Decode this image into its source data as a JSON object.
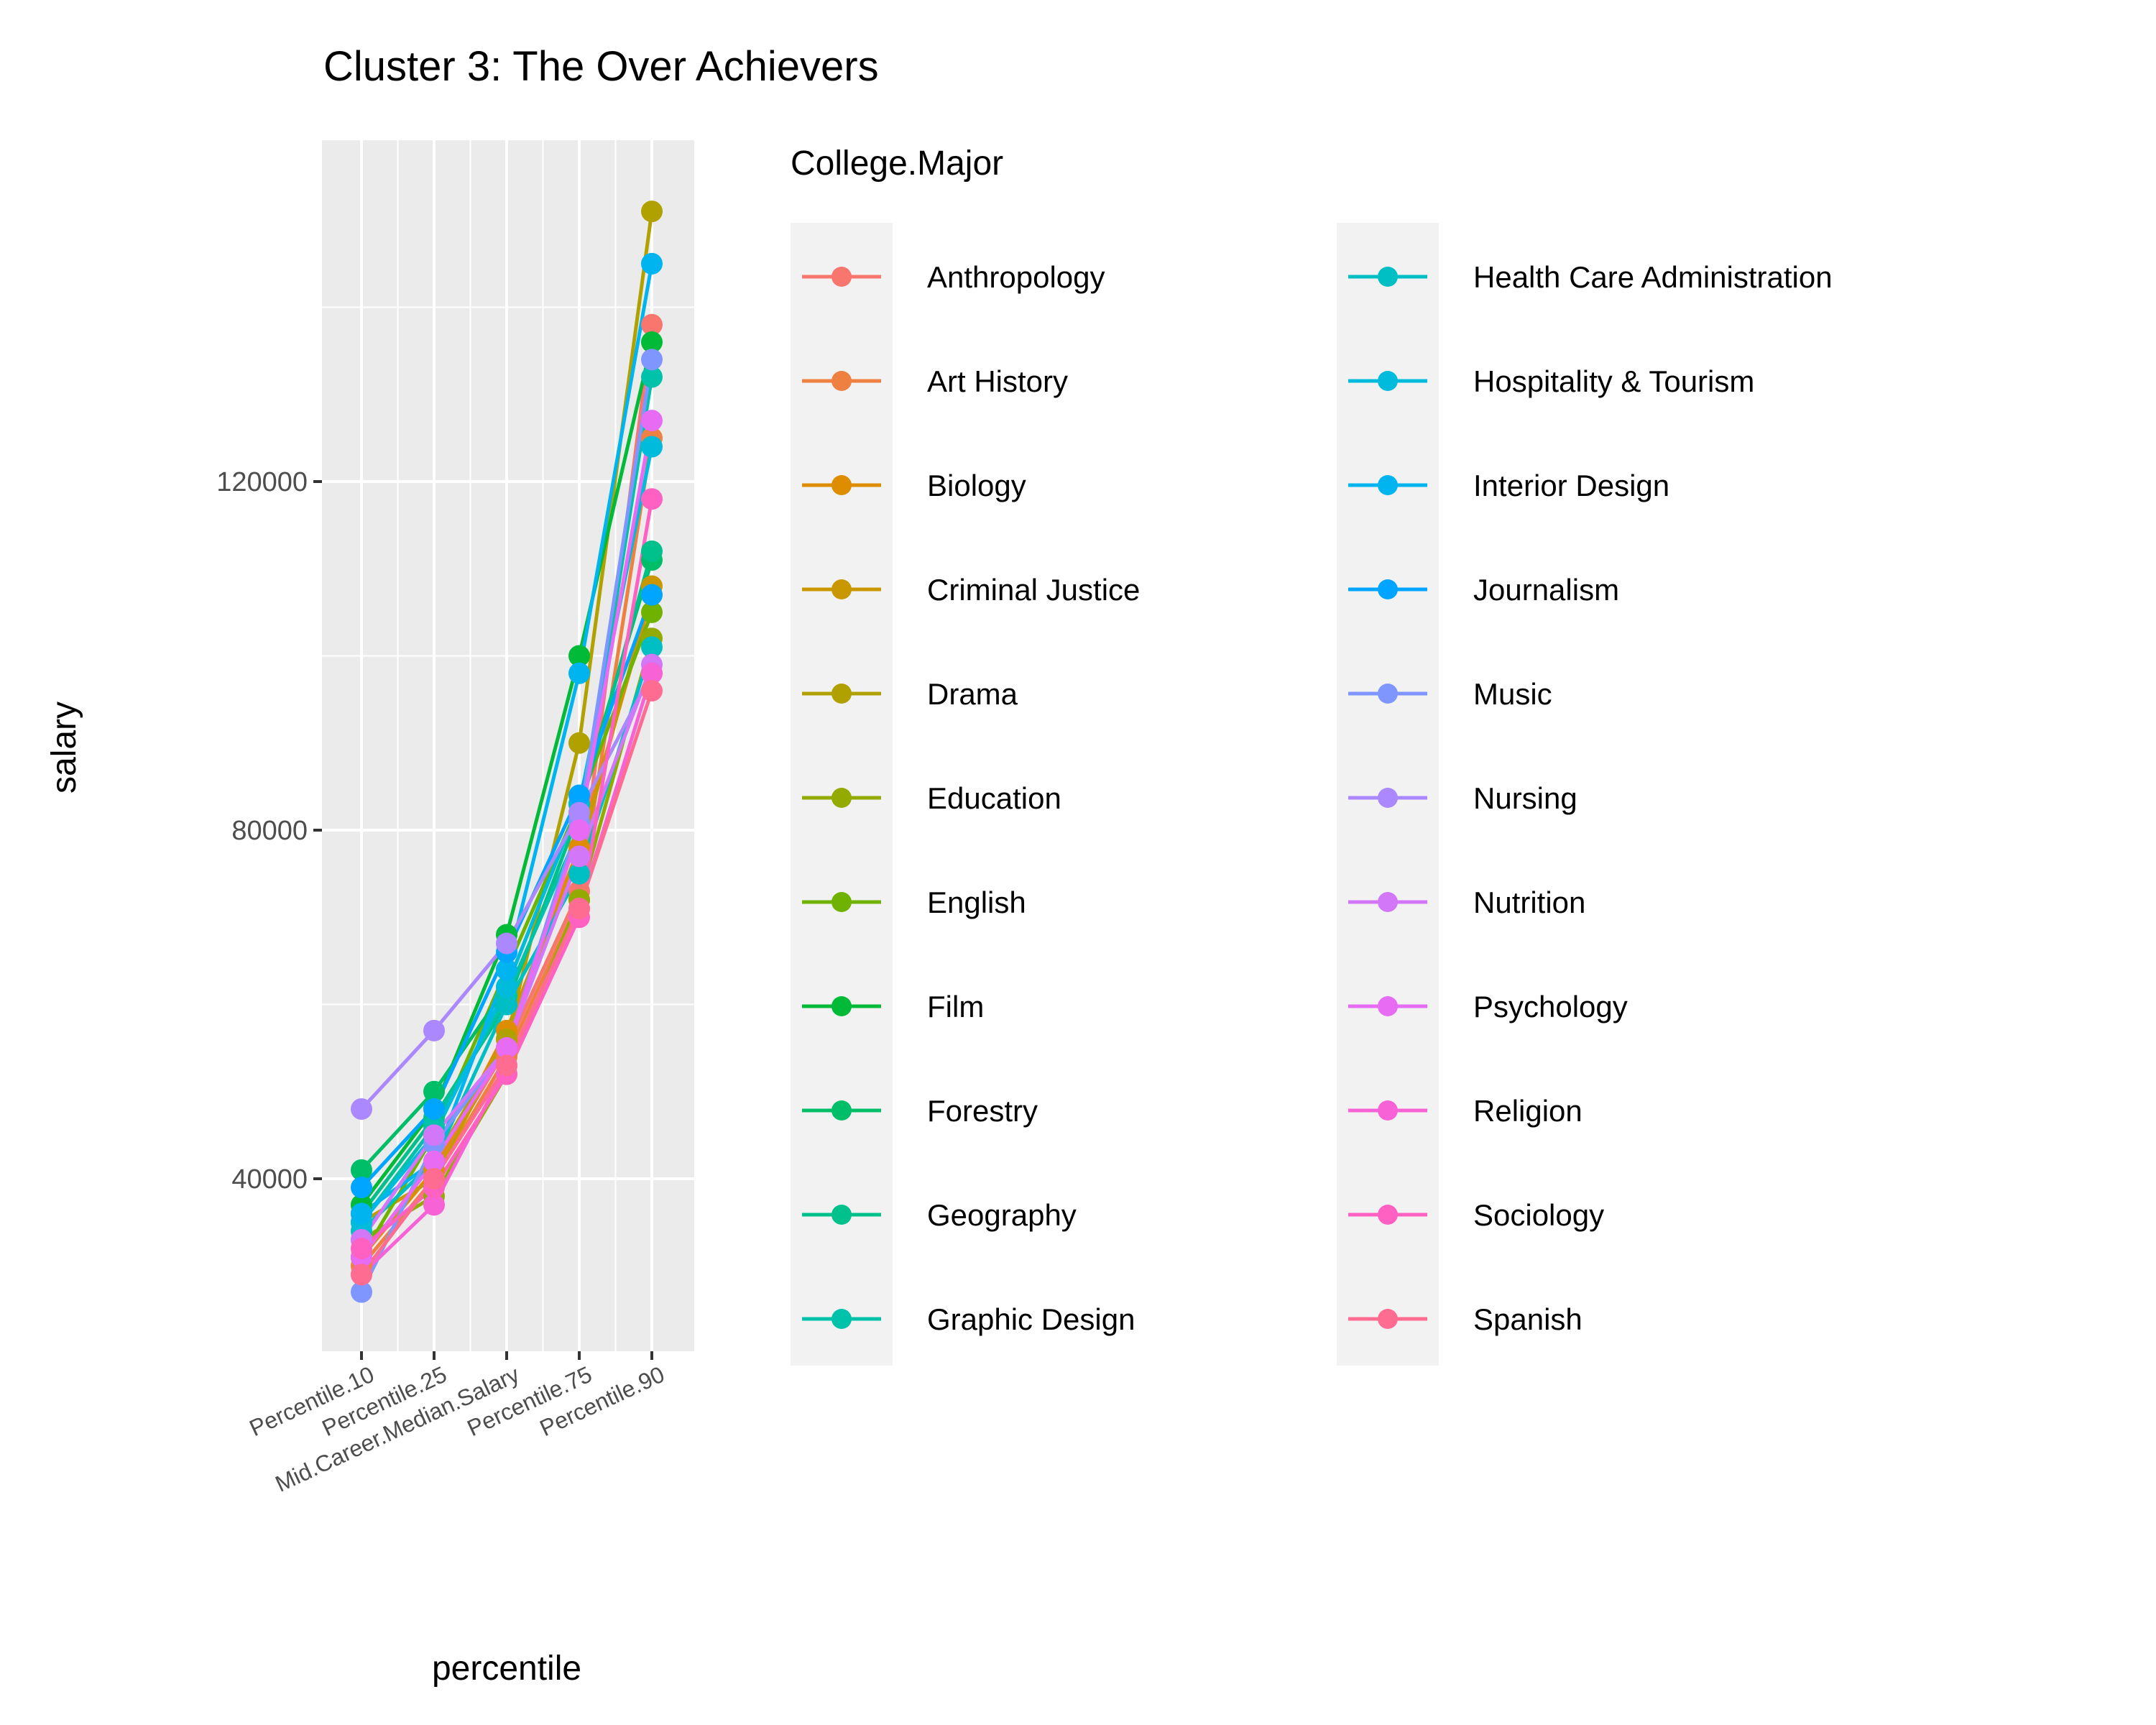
{
  "chart_data": {
    "type": "line",
    "title": "Cluster 3: The Over Achievers",
    "xlabel": "percentile",
    "ylabel": "salary",
    "categories": [
      "Percentile.10",
      "Percentile.25",
      "Mid.Career.Median.Salary",
      "Percentile.75",
      "Percentile.90"
    ],
    "y_ticks": [
      40000,
      80000,
      120000
    ],
    "ylim": [
      22000,
      160000
    ],
    "grid": true,
    "legend": {
      "title": "College.Major",
      "placement": "right",
      "columns": 2
    },
    "series": [
      {
        "name": "Anthropology",
        "color": "#F8766D",
        "values": [
          31000,
          41000,
          55000,
          73000,
          138000
        ]
      },
      {
        "name": "Art History",
        "color": "#EE8042",
        "values": [
          30000,
          40000,
          54000,
          72000,
          125000
        ]
      },
      {
        "name": "Biology",
        "color": "#DE8C00",
        "values": [
          31000,
          41000,
          57000,
          78000,
          107000
        ]
      },
      {
        "name": "Criminal Justice",
        "color": "#C99800",
        "values": [
          35000,
          40000,
          56000,
          77000,
          108000
        ]
      },
      {
        "name": "Drama",
        "color": "#B0A100",
        "values": [
          31000,
          42000,
          56000,
          90000,
          151000
        ]
      },
      {
        "name": "Education",
        "color": "#93AA00",
        "values": [
          33000,
          38000,
          52000,
          72000,
          102000
        ]
      },
      {
        "name": "English",
        "color": "#6FB300",
        "values": [
          31000,
          45000,
          64000,
          83000,
          105000
        ]
      },
      {
        "name": "Film",
        "color": "#00BA38",
        "values": [
          37000,
          48000,
          68000,
          100000,
          136000
        ]
      },
      {
        "name": "Forestry",
        "color": "#00BE67",
        "values": [
          41000,
          50000,
          62000,
          83000,
          111000
        ]
      },
      {
        "name": "Geography",
        "color": "#00C08B",
        "values": [
          36000,
          47000,
          60000,
          82000,
          112000
        ]
      },
      {
        "name": "Graphic Design",
        "color": "#00C1A9",
        "values": [
          35000,
          46000,
          61000,
          80000,
          132000
        ]
      },
      {
        "name": "Health Care Administration",
        "color": "#00BFC4",
        "values": [
          34000,
          42000,
          60000,
          75000,
          101000
        ]
      },
      {
        "name": "Hospitality & Tourism",
        "color": "#00BBDC",
        "values": [
          35000,
          45000,
          62000,
          83000,
          124000
        ]
      },
      {
        "name": "Interior Design",
        "color": "#00B4F0",
        "values": [
          36000,
          42000,
          64000,
          98000,
          145000
        ]
      },
      {
        "name": "Journalism",
        "color": "#00A5FF",
        "values": [
          39000,
          48000,
          66000,
          84000,
          107000
        ]
      },
      {
        "name": "Music",
        "color": "#7F96FF",
        "values": [
          27000,
          44000,
          55000,
          81000,
          134000
        ]
      },
      {
        "name": "Nursing",
        "color": "#AC88FF",
        "values": [
          48000,
          57000,
          67000,
          82000,
          98000
        ]
      },
      {
        "name": "Nutrition",
        "color": "#D177F7",
        "values": [
          33000,
          45000,
          55000,
          77000,
          99000
        ]
      },
      {
        "name": "Psychology",
        "color": "#E76BF3",
        "values": [
          31000,
          42000,
          55000,
          80000,
          127000
        ]
      },
      {
        "name": "Religion",
        "color": "#F862D7",
        "values": [
          29000,
          37000,
          53000,
          71000,
          98000
        ]
      },
      {
        "name": "Sociology",
        "color": "#FF61C3",
        "values": [
          32000,
          39000,
          52000,
          70000,
          118000
        ]
      },
      {
        "name": "Spanish",
        "color": "#FF6C91",
        "values": [
          29000,
          40000,
          53000,
          71000,
          96000
        ]
      }
    ]
  }
}
